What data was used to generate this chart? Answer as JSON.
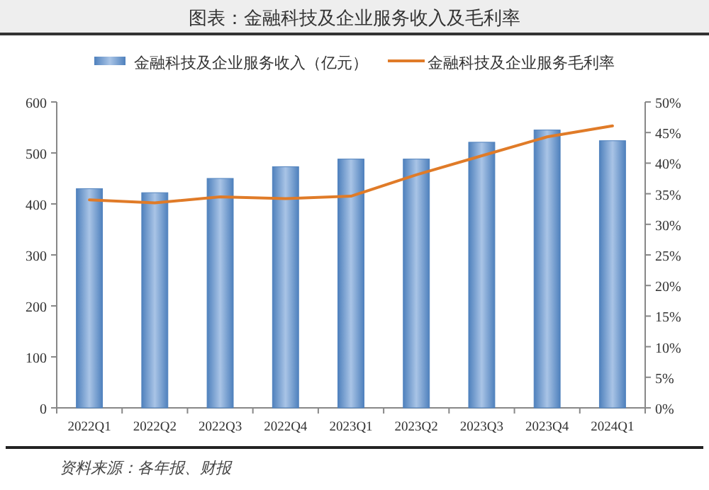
{
  "chart_data": {
    "type": "bar",
    "title": "图表：金融科技及企业服务收入及毛利率",
    "categories": [
      "2022Q1",
      "2022Q2",
      "2022Q3",
      "2022Q4",
      "2023Q1",
      "2023Q2",
      "2023Q3",
      "2023Q4",
      "2024Q1"
    ],
    "series": [
      {
        "name": "金融科技及企业服务收入（亿元）",
        "color": "#4f81bd",
        "values": [
          430,
          422,
          450,
          473,
          488,
          488,
          521,
          545,
          524
        ]
      },
      {
        "name": "金融科技及企业服务毛利率",
        "type": "line",
        "axis": "y2",
        "color": "#e07b28",
        "values": [
          34,
          33.5,
          34.5,
          34.2,
          34.6,
          38.1,
          41.2,
          44.3,
          46.1
        ]
      }
    ],
    "ylim": [
      0,
      600
    ],
    "yticks": [
      0,
      100,
      200,
      300,
      400,
      500,
      600
    ],
    "y2lim": [
      0,
      50
    ],
    "y2ticks": [
      {
        "value": 0,
        "label": "0%"
      },
      {
        "value": 5,
        "label": "5%"
      },
      {
        "value": 10,
        "label": "10%"
      },
      {
        "value": 15,
        "label": "15%"
      },
      {
        "value": 20,
        "label": "20%"
      },
      {
        "value": 25,
        "label": "25%"
      },
      {
        "value": 30,
        "label": "30%"
      },
      {
        "value": 35,
        "label": "35%"
      },
      {
        "value": 40,
        "label": "40%"
      },
      {
        "value": 45,
        "label": "45%"
      },
      {
        "value": 50,
        "label": "50%"
      }
    ],
    "legend": "top",
    "grid": false,
    "marker": "none",
    "annotations": [
      "资料来源：各年报、财报"
    ]
  }
}
